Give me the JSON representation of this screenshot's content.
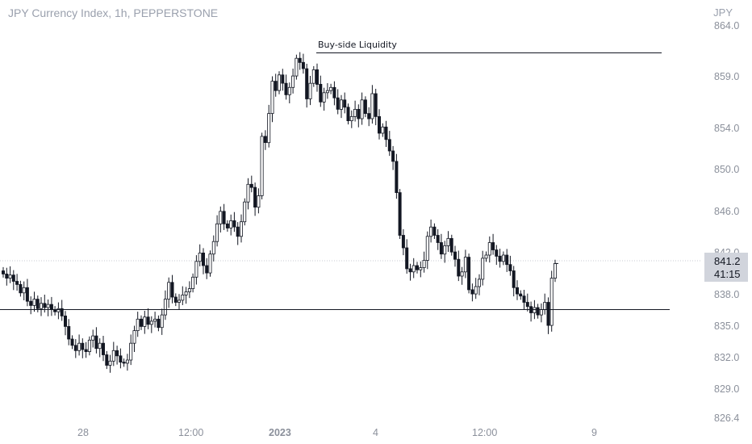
{
  "header": {
    "title": "JPY Currency Index, 1h, PEPPERSTONE",
    "currency": "JPY"
  },
  "price_badge": {
    "price": "841.2",
    "countdown": "41:15"
  },
  "chart_data": {
    "type": "candlestick",
    "title": "JPY Currency Index, 1h, PEPPERSTONE",
    "y_axis": {
      "ticks": [
        "859.0",
        "854.0",
        "850.0",
        "846.0",
        "842.0",
        "838.0",
        "835.0",
        "832.0",
        "829.0"
      ],
      "tick_values": [
        859.0,
        854.0,
        850.0,
        846.0,
        842.0,
        838.0,
        835.0,
        832.0,
        829.0
      ],
      "partial_top_label": "864.0",
      "partial_bottom_label": "826.4",
      "ylim": [
        826.4,
        864.0
      ],
      "position": "right"
    },
    "x_axis": {
      "ticks": [
        "28",
        "12:00",
        "2023",
        "4",
        "12:00",
        "9"
      ],
      "bold_tick": "2023"
    },
    "annotations": [
      {
        "type": "horizontal_segment",
        "label": "Buy-side Liquidity",
        "price": 861.2
      },
      {
        "type": "horizontal_segment",
        "label": "",
        "price": 836.7
      }
    ],
    "last_price": 841.2,
    "grid": false,
    "colors": {
      "up": "#ffffff",
      "down": "#131722",
      "border": "#131722",
      "axis_text": "#8b909b",
      "badge_bg": "#d1d4dc"
    },
    "closes": [
      840.2,
      839.8,
      840.1,
      839.5,
      839.2,
      838.4,
      838.9,
      837.6,
      837.2,
      837.8,
      836.9,
      837.4,
      837.0,
      837.3,
      836.8,
      836.6,
      836.9,
      836.2,
      835.2,
      834.0,
      833.4,
      832.9,
      833.6,
      833.0,
      832.8,
      833.9,
      834.3,
      833.1,
      833.6,
      832.5,
      831.5,
      831.9,
      832.9,
      832.4,
      831.8,
      831.7,
      832.0,
      833.6,
      834.8,
      835.9,
      835.2,
      836.1,
      835.4,
      835.7,
      835.9,
      835.1,
      836.3,
      837.8,
      839.4,
      838.0,
      837.5,
      837.7,
      838.2,
      838.5,
      838.8,
      839.9,
      841.4,
      842.2,
      841.0,
      840.3,
      842.1,
      843.3,
      845.0,
      846.2,
      845.0,
      844.6,
      845.3,
      844.7,
      843.8,
      845.2,
      847.1,
      848.8,
      848.5,
      846.6,
      847.7,
      853.4,
      852.8,
      855.6,
      858.7,
      857.8,
      859.3,
      858.5,
      857.4,
      858.1,
      859.2,
      860.9,
      860.5,
      859.9,
      857.0,
      858.5,
      859.8,
      858.4,
      856.7,
      857.6,
      857.8,
      858.1,
      857.1,
      856.0,
      856.9,
      856.2,
      854.9,
      855.3,
      856.0,
      855.1,
      856.9,
      855.6,
      855.1,
      857.5,
      855.3,
      853.7,
      854.3,
      853.1,
      852.0,
      851.0,
      848.0,
      843.9,
      842.7,
      840.7,
      840.4,
      841.0,
      840.6,
      840.8,
      841.5,
      843.8,
      844.7,
      843.9,
      843.2,
      842.1,
      842.9,
      843.6,
      842.3,
      841.6,
      840.0,
      840.4,
      841.8,
      838.7,
      838.3,
      839.0,
      839.7,
      841.7,
      842.0,
      843.2,
      842.5,
      841.9,
      841.4,
      842.0,
      841.1,
      840.5,
      838.9,
      838.3,
      838.1,
      837.5,
      837.1,
      836.5,
      837.0,
      836.3,
      836.8,
      837.5,
      835.3,
      839.8,
      841.2
    ]
  }
}
